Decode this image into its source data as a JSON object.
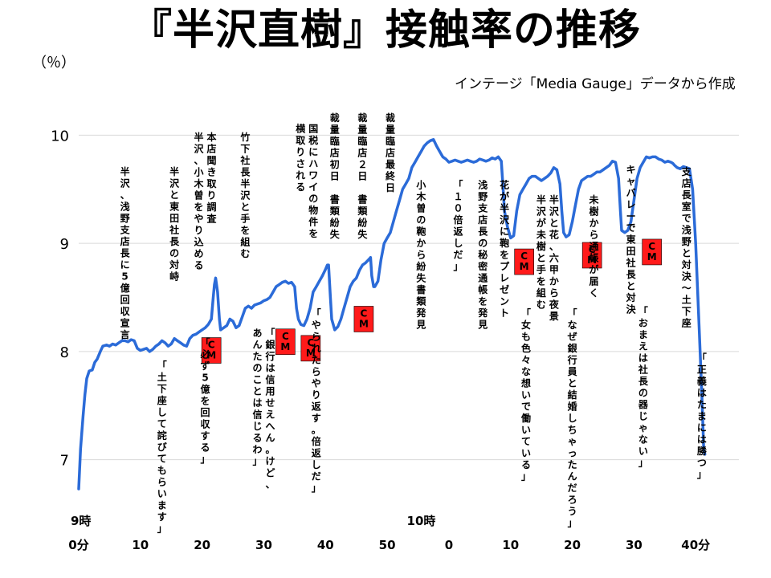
{
  "title": "『半沢直樹』接触率の推移",
  "source_note": "インテージ「Media Gauge」データから作成",
  "chart_data": {
    "type": "line",
    "ylabel": "（％）",
    "ylim": [
      6.5,
      10.3
    ],
    "yticks": [
      7,
      8,
      9,
      10
    ],
    "xlim": [
      0,
      107
    ],
    "hour_labels": [
      {
        "x": 0,
        "label": "9時"
      },
      {
        "x": 55,
        "label": "10時"
      }
    ],
    "minute_ticks": [
      {
        "x": 0,
        "label": "0分"
      },
      {
        "x": 10,
        "label": "10"
      },
      {
        "x": 20,
        "label": "20"
      },
      {
        "x": 30,
        "label": "30"
      },
      {
        "x": 40,
        "label": "40"
      },
      {
        "x": 50,
        "label": "50"
      },
      {
        "x": 60,
        "label": "0"
      },
      {
        "x": 70,
        "label": "10"
      },
      {
        "x": 80,
        "label": "20"
      },
      {
        "x": 90,
        "label": "30"
      },
      {
        "x": 100,
        "label": "40分"
      }
    ],
    "color": "#2b6bd8",
    "series": [
      {
        "points": [
          [
            0,
            6.73
          ],
          [
            0.3,
            7.1
          ],
          [
            0.7,
            7.4
          ],
          [
            1,
            7.6
          ],
          [
            1.3,
            7.75
          ],
          [
            1.7,
            7.82
          ],
          [
            2.2,
            7.83
          ],
          [
            2.6,
            7.9
          ],
          [
            3,
            7.93
          ],
          [
            3.5,
            8
          ],
          [
            3.9,
            8.05
          ],
          [
            4.5,
            8.06
          ],
          [
            5,
            8.05
          ],
          [
            5.5,
            8.07
          ],
          [
            6,
            8.06
          ],
          [
            6.5,
            8.08
          ],
          [
            7,
            8.1
          ],
          [
            7.5,
            8.1
          ],
          [
            8,
            8.09
          ],
          [
            8.5,
            8.11
          ],
          [
            9,
            8.1
          ],
          [
            9.5,
            8.03
          ],
          [
            10,
            8.01
          ],
          [
            10.5,
            8.02
          ],
          [
            11,
            8.03
          ],
          [
            11.5,
            8
          ],
          [
            12,
            8.02
          ],
          [
            12.5,
            8.05
          ],
          [
            13,
            8.07
          ],
          [
            13.5,
            8.1
          ],
          [
            14,
            8.08
          ],
          [
            14.5,
            8.05
          ],
          [
            15,
            8.07
          ],
          [
            15.5,
            8.12
          ],
          [
            16,
            8.1
          ],
          [
            16.5,
            8.08
          ],
          [
            17,
            8.06
          ],
          [
            17.5,
            8.05
          ],
          [
            18,
            8.12
          ],
          [
            18.5,
            8.15
          ],
          [
            19,
            8.16
          ],
          [
            19.5,
            8.18
          ],
          [
            20,
            8.2
          ],
          [
            20.5,
            8.22
          ],
          [
            21,
            8.25
          ],
          [
            21.5,
            8.3
          ],
          [
            21.8,
            8.5
          ],
          [
            22,
            8.62
          ],
          [
            22.2,
            8.68
          ],
          [
            22.5,
            8.55
          ],
          [
            22.8,
            8.3
          ],
          [
            23,
            8.2
          ],
          [
            23.5,
            8.22
          ],
          [
            24,
            8.24
          ],
          [
            24.5,
            8.3
          ],
          [
            25,
            8.28
          ],
          [
            25.5,
            8.22
          ],
          [
            26,
            8.24
          ],
          [
            26.5,
            8.32
          ],
          [
            27,
            8.4
          ],
          [
            27.5,
            8.42
          ],
          [
            28,
            8.4
          ],
          [
            28.5,
            8.43
          ],
          [
            29,
            8.44
          ],
          [
            29.5,
            8.45
          ],
          [
            30,
            8.47
          ],
          [
            30.5,
            8.48
          ],
          [
            31,
            8.5
          ],
          [
            31.5,
            8.55
          ],
          [
            32,
            8.6
          ],
          [
            32.5,
            8.62
          ],
          [
            33,
            8.64
          ],
          [
            33.5,
            8.65
          ],
          [
            34,
            8.63
          ],
          [
            34.5,
            8.64
          ],
          [
            35,
            8.6
          ],
          [
            35.3,
            8.4
          ],
          [
            35.6,
            8.3
          ],
          [
            36,
            8.25
          ],
          [
            36.5,
            8.24
          ],
          [
            37,
            8.3
          ],
          [
            37.5,
            8.4
          ],
          [
            38,
            8.55
          ],
          [
            38.5,
            8.6
          ],
          [
            39,
            8.65
          ],
          [
            39.5,
            8.7
          ],
          [
            40,
            8.76
          ],
          [
            40.3,
            8.8
          ],
          [
            40.5,
            8.8
          ],
          [
            40.8,
            8.5
          ],
          [
            41,
            8.3
          ],
          [
            41.5,
            8.2
          ],
          [
            42,
            8.23
          ],
          [
            42.5,
            8.3
          ],
          [
            43,
            8.4
          ],
          [
            43.5,
            8.5
          ],
          [
            44,
            8.6
          ],
          [
            44.5,
            8.65
          ],
          [
            45,
            8.68
          ],
          [
            45.5,
            8.75
          ],
          [
            46,
            8.8
          ],
          [
            46.5,
            8.82
          ],
          [
            47,
            8.85
          ],
          [
            47.3,
            8.87
          ],
          [
            47.5,
            8.7
          ],
          [
            47.8,
            8.6
          ],
          [
            48,
            8.6
          ],
          [
            48.5,
            8.65
          ],
          [
            49,
            8.85
          ],
          [
            49.5,
            9
          ],
          [
            50,
            9.05
          ],
          [
            50.5,
            9.1
          ],
          [
            51,
            9.2
          ],
          [
            51.5,
            9.3
          ],
          [
            52,
            9.4
          ],
          [
            52.5,
            9.5
          ],
          [
            53,
            9.55
          ],
          [
            53.5,
            9.6
          ],
          [
            54,
            9.7
          ],
          [
            54.5,
            9.75
          ],
          [
            55,
            9.8
          ],
          [
            55.5,
            9.85
          ],
          [
            56,
            9.9
          ],
          [
            56.5,
            9.93
          ],
          [
            57,
            9.95
          ],
          [
            57.5,
            9.96
          ],
          [
            58,
            9.9
          ],
          [
            58.5,
            9.85
          ],
          [
            59,
            9.8
          ],
          [
            59.5,
            9.78
          ],
          [
            60,
            9.75
          ],
          [
            60.5,
            9.76
          ],
          [
            61,
            9.77
          ],
          [
            61.5,
            9.76
          ],
          [
            62,
            9.75
          ],
          [
            62.5,
            9.76
          ],
          [
            63,
            9.77
          ],
          [
            63.5,
            9.76
          ],
          [
            64,
            9.75
          ],
          [
            64.5,
            9.76
          ],
          [
            65,
            9.78
          ],
          [
            65.5,
            9.77
          ],
          [
            66,
            9.76
          ],
          [
            66.5,
            9.77
          ],
          [
            67,
            9.79
          ],
          [
            67.5,
            9.78
          ],
          [
            68,
            9.8
          ],
          [
            68.5,
            9.76
          ],
          [
            68.8,
            9.5
          ],
          [
            69,
            9.3
          ],
          [
            69.5,
            9.15
          ],
          [
            70,
            9.05
          ],
          [
            70.5,
            9.07
          ],
          [
            71,
            9.3
          ],
          [
            71.5,
            9.45
          ],
          [
            72,
            9.5
          ],
          [
            72.5,
            9.55
          ],
          [
            73,
            9.6
          ],
          [
            73.5,
            9.62
          ],
          [
            74,
            9.62
          ],
          [
            74.5,
            9.6
          ],
          [
            75,
            9.58
          ],
          [
            75.5,
            9.6
          ],
          [
            76,
            9.62
          ],
          [
            76.5,
            9.65
          ],
          [
            77,
            9.7
          ],
          [
            77.5,
            9.68
          ],
          [
            78,
            9.55
          ],
          [
            78.3,
            9.3
          ],
          [
            78.6,
            9.1
          ],
          [
            79,
            9.06
          ],
          [
            79.5,
            9.08
          ],
          [
            80,
            9.2
          ],
          [
            80.5,
            9.35
          ],
          [
            81,
            9.5
          ],
          [
            81.5,
            9.58
          ],
          [
            82,
            9.6
          ],
          [
            82.5,
            9.62
          ],
          [
            83,
            9.62
          ],
          [
            83.5,
            9.64
          ],
          [
            84,
            9.66
          ],
          [
            84.5,
            9.66
          ],
          [
            85,
            9.68
          ],
          [
            85.5,
            9.7
          ],
          [
            86,
            9.72
          ],
          [
            86.5,
            9.76
          ],
          [
            87,
            9.75
          ],
          [
            87.5,
            9.6
          ],
          [
            87.8,
            9.3
          ],
          [
            88,
            9.12
          ],
          [
            88.5,
            9.1
          ],
          [
            89,
            9.12
          ],
          [
            89.5,
            9.2
          ],
          [
            90,
            9.4
          ],
          [
            90.5,
            9.6
          ],
          [
            91,
            9.7
          ],
          [
            91.5,
            9.75
          ],
          [
            92,
            9.8
          ],
          [
            92.5,
            9.79
          ],
          [
            93,
            9.8
          ],
          [
            93.5,
            9.8
          ],
          [
            94,
            9.78
          ],
          [
            94.5,
            9.77
          ],
          [
            95,
            9.75
          ],
          [
            95.5,
            9.76
          ],
          [
            96,
            9.75
          ],
          [
            96.3,
            9.74
          ],
          [
            96.6,
            9.72
          ],
          [
            97,
            9.7
          ],
          [
            97.5,
            9.69
          ],
          [
            98,
            9.71
          ],
          [
            98.5,
            9.7
          ],
          [
            99,
            9.69
          ],
          [
            99.5,
            9.5
          ],
          [
            100,
            9
          ],
          [
            100.5,
            8.3
          ],
          [
            101,
            7.6
          ],
          [
            101.3,
            7.1
          ],
          [
            101.5,
            7.05
          ]
        ]
      }
    ],
    "cm_markers": [
      {
        "x": 21.5,
        "y": 8.01,
        "label": "CM"
      },
      {
        "x": 33.5,
        "y": 8.09,
        "label": "CM"
      },
      {
        "x": 37.6,
        "y": 8.03,
        "label": "CM"
      },
      {
        "x": 46.2,
        "y": 8.3,
        "label": "CM"
      },
      {
        "x": 72.2,
        "y": 8.83,
        "label": "CM"
      },
      {
        "x": 83.2,
        "y": 8.89,
        "label": "CM"
      },
      {
        "x": 92.9,
        "y": 8.92,
        "label": "CM"
      }
    ],
    "annotations": [
      {
        "x": 7.5,
        "y": 9.72,
        "lines": [
          "半沢、浅野支店長に5億回収宣言"
        ]
      },
      {
        "x": 15.5,
        "y": 9.72,
        "lines": [
          "半沢と東田社長の対峙"
        ]
      },
      {
        "x": 20.5,
        "y": 10.04,
        "lines": [
          "本店聞き取り調査",
          "半沢、小木曽をやり込める"
        ]
      },
      {
        "x": 27,
        "y": 10.04,
        "lines": [
          "竹下社長半沢と手を組む"
        ]
      },
      {
        "x": 37,
        "y": 10.12,
        "lines": [
          "国税にハワイの物件を",
          "横取りされる"
        ]
      },
      {
        "x": 41.5,
        "y": 10.22,
        "lines": [
          "裁量臨店初日　書類紛失"
        ]
      },
      {
        "x": 46,
        "y": 10.22,
        "lines": [
          "裁量臨店２日　書類紛失"
        ]
      },
      {
        "x": 50.5,
        "y": 10.22,
        "lines": [
          "裁量臨店最終日"
        ]
      },
      {
        "x": 55.5,
        "y": 9.6,
        "lines": [
          "小木曽の鞄から紛失書類発見"
        ]
      },
      {
        "x": 61.5,
        "y": 9.6,
        "lines": [
          "「１０倍返しだ」"
        ]
      },
      {
        "x": 65.5,
        "y": 9.6,
        "lines": [
          "浅野支店長の秘密通帳を発見"
        ]
      },
      {
        "x": 69,
        "y": 9.6,
        "lines": [
          "花が半沢に鞄をプレゼント"
        ]
      },
      {
        "x": 76,
        "y": 9.46,
        "lines": [
          "半沢と花、六甲から夜景",
          "半沢が未樹と手を組む"
        ]
      },
      {
        "x": 83.5,
        "y": 9.46,
        "lines": [
          "未樹から通帳が届く"
        ]
      },
      {
        "x": 89.5,
        "y": 9.74,
        "lines": [
          "キャバレーで東田社長と対決"
        ]
      },
      {
        "x": 98.5,
        "y": 9.72,
        "lines": [
          "支店長室で浅野と対決～土下座"
        ]
      },
      {
        "x": 13.5,
        "y": 7.93,
        "lines": [
          "「土下座して詫びてもらいます」"
        ]
      },
      {
        "x": 20.5,
        "y": 8.14,
        "lines": [
          "「必ず5億を回収する」"
        ]
      },
      {
        "x": 30,
        "y": 8.23,
        "lines": [
          "「銀行は信用せえへん。けど、",
          "あんたのことは信じるわ」"
        ]
      },
      {
        "x": 38.5,
        "y": 8.41,
        "lines": [
          "「やられたらやり返す。倍返しだ」"
        ]
      },
      {
        "x": 72.5,
        "y": 8.41,
        "lines": [
          "「女も色々な想いで働いている」"
        ]
      },
      {
        "x": 80,
        "y": 8.41,
        "lines": [
          "「なぜ銀行員と結婚しちゃったんだろう」"
        ]
      },
      {
        "x": 91.5,
        "y": 8.43,
        "lines": [
          "「おまえは社長の器じゃない」"
        ]
      },
      {
        "x": 101,
        "y": 8.0,
        "lines": [
          "「正義はたまには勝つ」"
        ]
      }
    ]
  }
}
